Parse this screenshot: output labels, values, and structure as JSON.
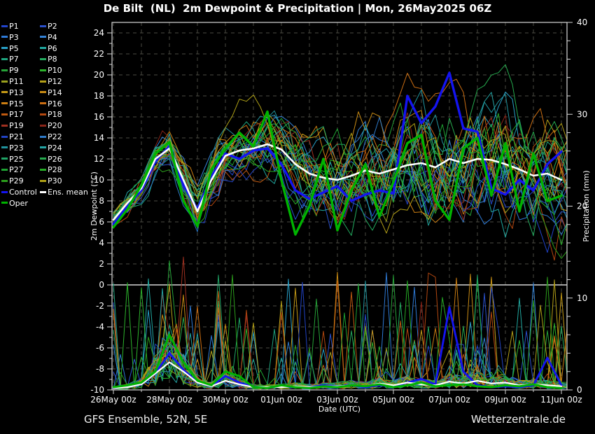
{
  "title": "De Bilt  (NL)  2m Dewpoint & Precipitation | Mon, 26May2025 06Z",
  "footer": {
    "left": "GFS Ensemble, 52N, 5E",
    "right": "Wetterzentrale.de"
  },
  "legend_labels": {
    "control": "Control",
    "ens_mean": "Ens. mean",
    "oper": "Oper"
  },
  "chart_data": {
    "type": "line",
    "title": "De Bilt  (NL)  2m Dewpoint & Precipitation | Mon, 26May2025 06Z",
    "xlabel": "Date (UTC)",
    "ylabel_left": "2m Dewpoint (°C)",
    "ylabel_right": "Precipitation (mm)",
    "x_tick_labels": [
      "26May 00z",
      "28May 00z",
      "30May 00z",
      "01Jun 00z",
      "03Jun 00z",
      "05Jun 00z",
      "07Jun 00z",
      "09Jun 00z",
      "11Jun 00z"
    ],
    "x_tick_days": [
      0,
      2,
      4,
      6,
      8,
      10,
      12,
      14,
      16
    ],
    "x_range_days": [
      0,
      16.25
    ],
    "y_left_range": [
      -10,
      25
    ],
    "y_left_ticks": [
      -10,
      -8,
      -6,
      -4,
      -2,
      0,
      2,
      4,
      6,
      8,
      10,
      12,
      14,
      16,
      18,
      20,
      22,
      24
    ],
    "y_right_range": [
      0,
      40
    ],
    "y_right_ticks": [
      0,
      10,
      20,
      30,
      40
    ],
    "grid": {
      "x_step_days": 1,
      "y_step_c": 2,
      "style": "dashed",
      "color": "#4a4a42",
      "zero_line_color": "#ffffff"
    },
    "time_step_hours": 12,
    "series": {
      "ens_mean": {
        "name": "Ens. mean",
        "color": "#ffffff",
        "width": 2.6,
        "dewpoint_c": [
          6.2,
          7.8,
          9.2,
          12.0,
          13.0,
          10.0,
          7.0,
          10.0,
          12.3,
          12.8,
          13.0,
          13.4,
          12.9,
          11.5,
          10.6,
          10.2,
          10.0,
          10.4,
          10.9,
          10.6,
          11.0,
          11.4,
          11.6,
          11.2,
          12.0,
          11.6,
          12.0,
          11.9,
          11.5,
          11.0,
          10.4,
          10.6,
          10.0
        ],
        "precip_mm": [
          0.2,
          0.3,
          0.6,
          1.8,
          3.0,
          2.0,
          0.8,
          0.4,
          1.0,
          0.6,
          0.3,
          0.3,
          0.3,
          0.4,
          0.3,
          0.4,
          0.4,
          0.5,
          0.4,
          0.7,
          0.5,
          0.8,
          0.6,
          0.5,
          0.9,
          0.7,
          1.0,
          0.7,
          0.8,
          0.5,
          0.6,
          0.5,
          0.4
        ]
      },
      "control": {
        "name": "Control",
        "color": "#1414f0",
        "width": 3.4,
        "dewpoint_c": [
          5.8,
          7.5,
          9.0,
          11.8,
          13.2,
          9.5,
          7.2,
          10.3,
          12.5,
          12.0,
          12.8,
          13.0,
          11.5,
          9.0,
          8.2,
          8.8,
          9.4,
          8.0,
          8.6,
          9.0,
          8.7,
          18.0,
          15.4,
          17.0,
          20.2,
          14.9,
          14.6,
          9.2,
          8.6,
          10.0,
          9.0,
          11.5,
          12.7
        ],
        "precip_mm": [
          0.2,
          0.4,
          0.6,
          1.8,
          4.0,
          2.2,
          0.8,
          0.4,
          1.5,
          0.8,
          0.3,
          0.2,
          0.4,
          0.3,
          0.3,
          0.5,
          0.4,
          0.5,
          0.3,
          0.5,
          0.4,
          0.8,
          1.2,
          0.6,
          9.0,
          2.0,
          0.5,
          0.3,
          0.4,
          0.3,
          0.5,
          3.5,
          0.5
        ]
      },
      "oper": {
        "name": "Oper",
        "color": "#00b400",
        "width": 3.4,
        "dewpoint_c": [
          5.5,
          7.2,
          9.5,
          12.5,
          13.6,
          8.0,
          5.6,
          11.0,
          13.0,
          14.5,
          13.2,
          16.5,
          10.0,
          4.8,
          7.5,
          12.0,
          5.2,
          9.0,
          11.5,
          6.5,
          9.8,
          13.5,
          14.3,
          8.0,
          6.2,
          13.0,
          14.0,
          8.5,
          13.5,
          7.0,
          12.5,
          8.0,
          8.5
        ],
        "precip_mm": [
          0.3,
          0.5,
          0.8,
          2.0,
          6.0,
          3.0,
          1.0,
          0.5,
          2.0,
          1.5,
          0.3,
          0.2,
          0.5,
          0.3,
          0.2,
          0.4,
          0.3,
          0.5,
          0.4,
          0.6,
          0.3,
          0.5,
          0.8,
          0.4,
          0.5,
          0.6,
          0.4,
          0.3,
          0.5,
          0.4,
          0.6,
          0.3,
          0.2
        ]
      }
    },
    "members": [
      {
        "name": "P1",
        "color": "#2244cc"
      },
      {
        "name": "P2",
        "color": "#2a50cc"
      },
      {
        "name": "P3",
        "color": "#2e7ad6"
      },
      {
        "name": "P4",
        "color": "#3482d6"
      },
      {
        "name": "P5",
        "color": "#28a0c8"
      },
      {
        "name": "P6",
        "color": "#20a8a0"
      },
      {
        "name": "P7",
        "color": "#1ea47e"
      },
      {
        "name": "P8",
        "color": "#22aa5e"
      },
      {
        "name": "P9",
        "color": "#26a338"
      },
      {
        "name": "P10",
        "color": "#2cb42c"
      },
      {
        "name": "P11",
        "color": "#9aa01e"
      },
      {
        "name": "P12",
        "color": "#b4a018"
      },
      {
        "name": "P13",
        "color": "#c49a16"
      },
      {
        "name": "P14",
        "color": "#ca8c14"
      },
      {
        "name": "P15",
        "color": "#cc7e12"
      },
      {
        "name": "P16",
        "color": "#cc6e12"
      },
      {
        "name": "P17",
        "color": "#c05a10"
      },
      {
        "name": "P18",
        "color": "#b44810"
      },
      {
        "name": "P19",
        "color": "#a03020"
      },
      {
        "name": "P20",
        "color": "#8a2418"
      },
      {
        "name": "P21",
        "color": "#2142c2"
      },
      {
        "name": "P22",
        "color": "#2e7ac8"
      },
      {
        "name": "P23",
        "color": "#20929c"
      },
      {
        "name": "P24",
        "color": "#24a4a4"
      },
      {
        "name": "P25",
        "color": "#20a466"
      },
      {
        "name": "P26",
        "color": "#26aa4e"
      },
      {
        "name": "P27",
        "color": "#1ea232"
      },
      {
        "name": "P28",
        "color": "#26ac26"
      },
      {
        "name": "P29",
        "color": "#2c9e1c"
      },
      {
        "name": "P30",
        "color": "#aea016"
      }
    ],
    "member_envelope": {
      "dewpoint_spread_c": [
        0.5,
        0.7,
        0.9,
        1.1,
        1.3,
        1.55,
        1.8,
        1.95,
        2.1,
        2.25,
        2.4,
        2.6,
        2.8,
        3.0,
        3.2,
        3.3,
        3.6,
        3.8,
        4.0,
        4.15,
        4.3,
        4.4,
        4.5,
        4.5,
        4.5,
        4.5,
        4.5,
        4.5,
        4.5,
        4.5,
        4.5,
        4.5,
        4.5
      ],
      "precip_spike_max_mm": 14
    },
    "legend_position": "upper-left-outside"
  }
}
